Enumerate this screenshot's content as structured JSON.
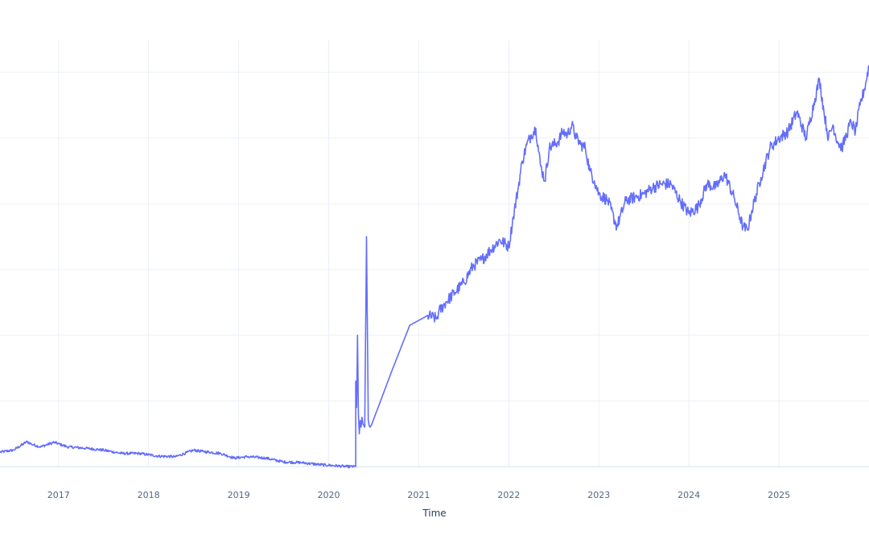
{
  "chart_data": {
    "type": "line",
    "title": "",
    "xlabel": "Time",
    "ylabel": "",
    "grid": true,
    "legend": "none",
    "line_color": "#636efa",
    "x_tick_labels": [
      "2017",
      "2018",
      "2019",
      "2020",
      "2021",
      "2022",
      "2023",
      "2024",
      "2025"
    ],
    "xlim": [
      2016.35,
      2026.0
    ],
    "ylim": [
      -0.1,
      6.4
    ],
    "y_gridlines": [
      0,
      1,
      2,
      3,
      4,
      5,
      6
    ],
    "series": [
      {
        "x": [
          2016.35,
          2016.5,
          2016.65,
          2016.7,
          2016.8,
          2016.95,
          2017.1,
          2017.3,
          2017.5,
          2017.7,
          2017.9,
          2018.1,
          2018.3,
          2018.5,
          2018.6,
          2018.8,
          2018.95,
          2019.1,
          2019.3,
          2019.5,
          2019.7,
          2019.9,
          2020.0,
          2020.2,
          2020.3,
          2020.3,
          2020.31,
          2020.32,
          2020.33,
          2020.34,
          2020.35,
          2020.36,
          2020.37,
          2020.38,
          2020.4,
          2020.42,
          2020.44,
          2020.45,
          2020.46,
          2020.47,
          2020.48,
          2020.7,
          2020.9,
          2021.1,
          2021.2,
          2021.22,
          2021.3,
          2021.4,
          2021.5,
          2021.6,
          2021.7,
          2021.8,
          2021.9,
          2022.0,
          2022.05,
          2022.1,
          2022.15,
          2022.2,
          2022.25,
          2022.3,
          2022.35,
          2022.4,
          2022.45,
          2022.5,
          2022.55,
          2022.6,
          2022.65,
          2022.7,
          2022.75,
          2022.8,
          2022.85,
          2022.9,
          2022.95,
          2023.0,
          2023.1,
          2023.2,
          2023.3,
          2023.4,
          2023.5,
          2023.6,
          2023.7,
          2023.8,
          2023.9,
          2024.0,
          2024.1,
          2024.2,
          2024.3,
          2024.4,
          2024.5,
          2024.6,
          2024.65,
          2024.7,
          2024.8,
          2024.9,
          2025.0,
          2025.1,
          2025.2,
          2025.3,
          2025.4,
          2025.45,
          2025.5,
          2025.55,
          2025.6,
          2025.65,
          2025.7,
          2025.75,
          2025.8,
          2025.85,
          2025.9,
          2025.95,
          2026.0
        ],
        "y": [
          0.22,
          0.25,
          0.38,
          0.34,
          0.3,
          0.37,
          0.3,
          0.28,
          0.25,
          0.2,
          0.2,
          0.16,
          0.15,
          0.25,
          0.23,
          0.2,
          0.13,
          0.15,
          0.13,
          0.07,
          0.06,
          0.03,
          0.02,
          0.0,
          0.0,
          1.3,
          0.9,
          2.0,
          0.8,
          0.5,
          0.7,
          0.6,
          0.75,
          0.65,
          0.6,
          3.5,
          0.7,
          0.62,
          0.6,
          0.62,
          0.65,
          1.45,
          2.15,
          2.3,
          2.25,
          2.35,
          2.5,
          2.65,
          2.8,
          3.05,
          3.15,
          3.3,
          3.45,
          3.35,
          3.8,
          4.2,
          4.65,
          4.9,
          5.05,
          5.15,
          4.6,
          4.35,
          4.85,
          4.9,
          4.95,
          5.1,
          5.05,
          5.2,
          5.0,
          4.9,
          4.85,
          4.5,
          4.35,
          4.15,
          4.05,
          3.65,
          4.05,
          4.1,
          4.15,
          4.25,
          4.3,
          4.3,
          4.05,
          3.85,
          3.95,
          4.3,
          4.25,
          4.45,
          4.1,
          3.65,
          3.6,
          3.9,
          4.4,
          4.85,
          5.0,
          5.1,
          5.4,
          5.0,
          5.6,
          5.9,
          5.4,
          5.0,
          5.2,
          4.95,
          4.85,
          5.05,
          5.25,
          5.1,
          5.5,
          5.75,
          6.1
        ]
      }
    ]
  }
}
